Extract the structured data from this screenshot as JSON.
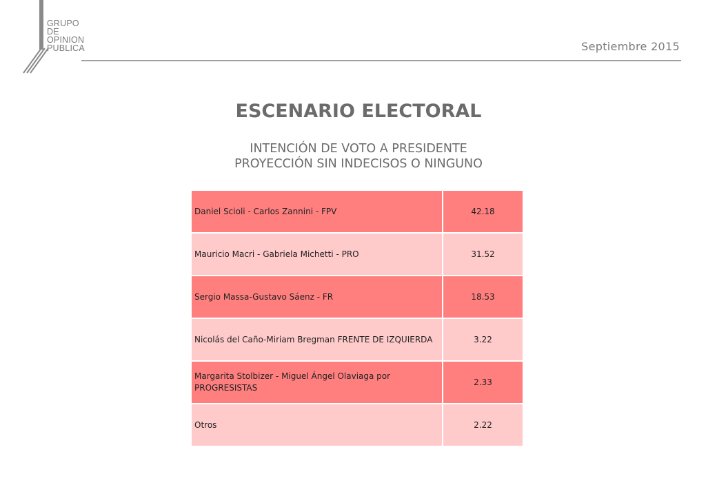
{
  "logo": {
    "lines": [
      "GRUPO",
      "DE",
      "OPINION",
      "PUBLICA"
    ]
  },
  "header": {
    "date": "Septiembre 2015"
  },
  "title": "ESCENARIO ELECTORAL",
  "subtitle": {
    "line1": "INTENCIÓN DE VOTO A PRESIDENTE",
    "line2": "PROYECCIÓN SIN INDECISOS O NINGUNO"
  },
  "colors": {
    "row_dark": "#ff7f7f",
    "row_light": "#ffcaca",
    "text_gray": "#6b6b6b"
  },
  "table": {
    "rows": [
      {
        "name": "Daniel Scioli - Carlos Zannini - FPV",
        "value": "42.18"
      },
      {
        "name": "Mauricio Macri - Gabriela Michetti - PRO",
        "value": "31.52"
      },
      {
        "name": "Sergio Massa-Gustavo Sáenz - FR",
        "value": "18.53"
      },
      {
        "name": "Nicolás del Caño-Miriam Bregman FRENTE DE IZQUIERDA",
        "value": "3.22"
      },
      {
        "name": "Margarita Stolbizer - Miguel Ángel Olaviaga por PROGRESISTAS",
        "value": "2.33"
      },
      {
        "name": "Otros",
        "value": "2.22"
      }
    ]
  }
}
